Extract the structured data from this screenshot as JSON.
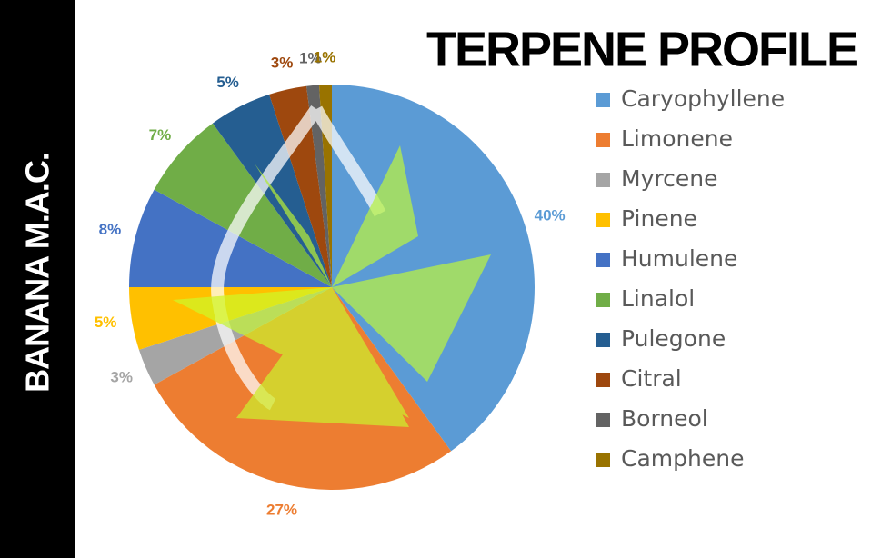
{
  "chart_data": {
    "type": "pie",
    "title": "TERPENE PROFILE",
    "subtitle": "BANANA M.A.C.",
    "categories": [
      "Caryophyllene",
      "Limonene",
      "Myrcene",
      "Pinene",
      "Humulene",
      "Linalol",
      "Pulegone",
      "Citral",
      "Borneol",
      "Camphene"
    ],
    "values": [
      40,
      27,
      3,
      5,
      8,
      7,
      5,
      3,
      1,
      1
    ],
    "value_labels": [
      "40%",
      "27%",
      "3%",
      "5%",
      "8%",
      "7%",
      "5%",
      "3%",
      "1%",
      "1%"
    ],
    "colors": [
      "#5b9bd5",
      "#ed7d31",
      "#a5a5a5",
      "#ffc000",
      "#4472c4",
      "#70ad47",
      "#255e91",
      "#9e480e",
      "#636363",
      "#997300"
    ],
    "legend": "right"
  }
}
